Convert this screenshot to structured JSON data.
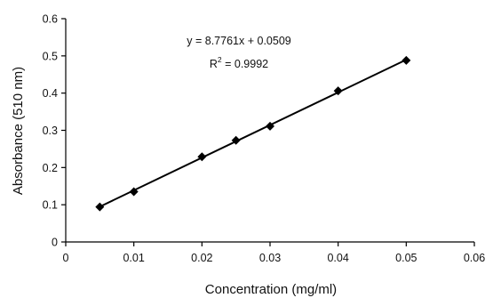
{
  "chart_data": {
    "type": "scatter",
    "xlabel": "Concentration (mg/ml)",
    "ylabel": "Absorbance (510 nm)",
    "xlim": [
      0,
      0.06
    ],
    "ylim": [
      0,
      0.6
    ],
    "x_ticks": [
      "0",
      "0.01",
      "0.02",
      "0.03",
      "0.04",
      "0.05",
      "0.06"
    ],
    "y_ticks": [
      "0",
      "0.1",
      "0.2",
      "0.3",
      "0.4",
      "0.5",
      "0.6"
    ],
    "grid": false,
    "series": [
      {
        "x": [
          0.005,
          0.01,
          0.02,
          0.025,
          0.03,
          0.04,
          0.05
        ],
        "y": [
          0.094,
          0.135,
          0.229,
          0.273,
          0.311,
          0.406,
          0.488
        ],
        "marker": "diamond",
        "color": "#000000"
      }
    ],
    "trendline": {
      "type": "linear",
      "slope": 8.7761,
      "intercept": 0.0509,
      "x_range": [
        0.005,
        0.05
      ],
      "color": "#000000"
    },
    "annotations": {
      "equation": "y = 8.7761x + 0.0509",
      "r2_prefix": "R",
      "r2_sup": "2",
      "r2_suffix": " = 0.9992"
    }
  }
}
